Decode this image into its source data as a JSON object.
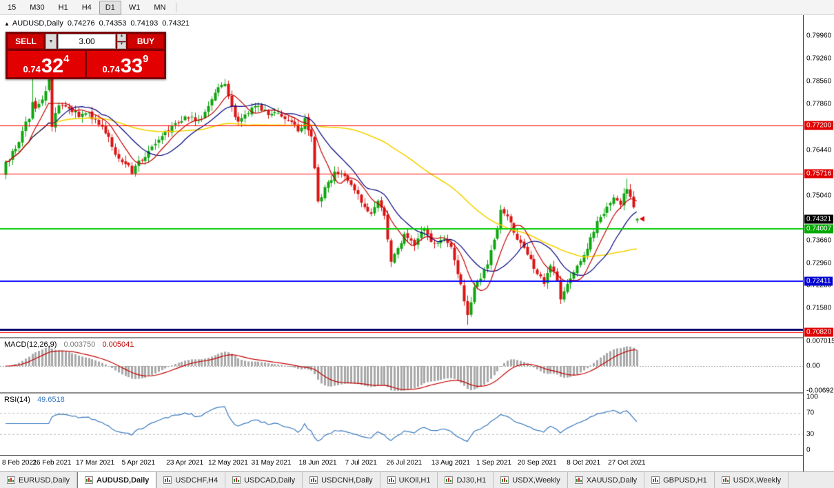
{
  "toolbar": {
    "timeframes": [
      "15",
      "M30",
      "H1",
      "H4",
      "D1",
      "W1",
      "MN"
    ],
    "active": "D1"
  },
  "chart_header": {
    "symbol_label": "AUDUSD,Daily",
    "open": "0.74276",
    "high": "0.74353",
    "low": "0.74193",
    "close": "0.74321"
  },
  "trade_panel": {
    "sell_label": "SELL",
    "buy_label": "BUY",
    "volume": "3.00",
    "sell_price": {
      "prefix": "0.74",
      "big": "32",
      "sup": "4"
    },
    "buy_price": {
      "prefix": "0.74",
      "big": "33",
      "sup": "9"
    }
  },
  "price_axis": {
    "plain_labels": [
      "0.79960",
      "0.79260",
      "0.78560",
      "0.77860",
      "0.76440",
      "0.75040",
      "0.73660",
      "0.72960",
      "0.72280",
      "0.71580"
    ],
    "badges": [
      {
        "value": "0.77200",
        "color": "#e00000"
      },
      {
        "value": "0.75716",
        "color": "#e00000"
      },
      {
        "value": "0.74321",
        "color": "#000000"
      },
      {
        "value": "0.74007",
        "color": "#00a800"
      },
      {
        "value": "0.72411",
        "color": "#0000cf"
      },
      {
        "value": "0.70820",
        "color": "#e00000"
      }
    ]
  },
  "hlines": [
    {
      "price": 0.772,
      "color": "#ff0000",
      "width": 1
    },
    {
      "price": 0.75716,
      "color": "#ff0000",
      "width": 1
    },
    {
      "price": 0.74007,
      "color": "#00cc00",
      "width": 2
    },
    {
      "price": 0.72411,
      "color": "#0000ff",
      "width": 2
    },
    {
      "price": 0.7092,
      "color": "#000066",
      "width": 3
    },
    {
      "price": 0.7082,
      "color": "#ff0000",
      "width": 1
    }
  ],
  "macd_panel": {
    "label": "MACD(12,26,9)",
    "value_main": "0.003750",
    "value_signal": "0.005041",
    "axis_labels": [
      "0.007015",
      "0.00",
      "-0.006923"
    ]
  },
  "rsi_panel": {
    "label": "RSI(14)",
    "value": "49.6518",
    "axis_labels": [
      "100",
      "70",
      "30",
      "0"
    ],
    "levels": [
      70,
      30
    ]
  },
  "tabs": [
    "EURUSD,Daily",
    "AUDUSD,Daily",
    "USDCHF,H4",
    "USDCAD,Daily",
    "USDCNH,Daily",
    "UKOil,H1",
    "DJ30,H1",
    "USDX,Weekly",
    "XAUUSD,Daily",
    "GBPUSD,H1",
    "USDX,Weekly"
  ],
  "active_tab_index": 1,
  "chart_data": {
    "type": "candlestick",
    "symbol": "AUDUSD",
    "timeframe": "Daily",
    "price_range_top": 0.806,
    "price_range_bottom": 0.7068,
    "candle_count": 191,
    "last_candle": {
      "open": 0.74276,
      "high": 0.74353,
      "low": 0.74193,
      "close": 0.74321
    },
    "price_anchors": [
      [
        0,
        0.7608
      ],
      [
        3,
        0.7648
      ],
      [
        6,
        0.7732
      ],
      [
        7,
        0.774
      ],
      [
        8,
        0.7792
      ],
      [
        9,
        0.7772
      ],
      [
        11,
        0.78
      ],
      [
        13,
        0.7862
      ],
      [
        14,
        0.7716
      ],
      [
        16,
        0.7782
      ],
      [
        19,
        0.7772
      ],
      [
        22,
        0.7746
      ],
      [
        25,
        0.776
      ],
      [
        27,
        0.7738
      ],
      [
        30,
        0.7696
      ],
      [
        33,
        0.763
      ],
      [
        36,
        0.7601
      ],
      [
        38,
        0.7572
      ],
      [
        40,
        0.7612
      ],
      [
        43,
        0.7642
      ],
      [
        46,
        0.7676
      ],
      [
        50,
        0.772
      ],
      [
        54,
        0.7748
      ],
      [
        58,
        0.7736
      ],
      [
        61,
        0.778
      ],
      [
        64,
        0.7838
      ],
      [
        66,
        0.7848
      ],
      [
        68,
        0.7778
      ],
      [
        70,
        0.7732
      ],
      [
        73,
        0.7758
      ],
      [
        76,
        0.778
      ],
      [
        79,
        0.7752
      ],
      [
        82,
        0.7758
      ],
      [
        85,
        0.7736
      ],
      [
        88,
        0.7702
      ],
      [
        90,
        0.7744
      ],
      [
        92,
        0.7686
      ],
      [
        94,
        0.7486
      ],
      [
        96,
        0.753
      ],
      [
        99,
        0.7578
      ],
      [
        102,
        0.7564
      ],
      [
        105,
        0.752
      ],
      [
        107,
        0.7482
      ],
      [
        110,
        0.7448
      ],
      [
        112,
        0.7488
      ],
      [
        114,
        0.7442
      ],
      [
        116,
        0.73
      ],
      [
        118,
        0.7342
      ],
      [
        120,
        0.7386
      ],
      [
        123,
        0.735
      ],
      [
        126,
        0.74
      ],
      [
        129,
        0.7358
      ],
      [
        132,
        0.737
      ],
      [
        134,
        0.7346
      ],
      [
        136,
        0.7262
      ],
      [
        138,
        0.7178
      ],
      [
        139,
        0.7136
      ],
      [
        141,
        0.7222
      ],
      [
        143,
        0.7248
      ],
      [
        145,
        0.7292
      ],
      [
        147,
        0.7368
      ],
      [
        149,
        0.746
      ],
      [
        151,
        0.744
      ],
      [
        154,
        0.7368
      ],
      [
        157,
        0.7322
      ],
      [
        160,
        0.7262
      ],
      [
        162,
        0.7232
      ],
      [
        164,
        0.7288
      ],
      [
        166,
        0.7242
      ],
      [
        167,
        0.7184
      ],
      [
        169,
        0.7232
      ],
      [
        171,
        0.7268
      ],
      [
        173,
        0.7302
      ],
      [
        175,
        0.734
      ],
      [
        177,
        0.7392
      ],
      [
        179,
        0.7438
      ],
      [
        181,
        0.747
      ],
      [
        183,
        0.7498
      ],
      [
        185,
        0.7476
      ],
      [
        187,
        0.7524
      ],
      [
        188,
        0.75
      ],
      [
        189,
        0.7468
      ],
      [
        190,
        0.74321
      ]
    ],
    "wick_overrides": [
      {
        "i": 8,
        "high": 0.788
      },
      {
        "i": 139,
        "low": 0.7106
      },
      {
        "i": 167,
        "low": 0.717
      },
      {
        "i": 187,
        "high": 0.7556
      }
    ],
    "date_ticks": [
      {
        "label": "8 Feb 2021",
        "index": 0
      },
      {
        "label": "26 Feb 2021",
        "index": 14
      },
      {
        "label": "17 Mar 2021",
        "index": 27
      },
      {
        "label": "5 Apr 2021",
        "index": 40
      },
      {
        "label": "23 Apr 2021",
        "index": 54
      },
      {
        "label": "12 May 2021",
        "index": 67
      },
      {
        "label": "31 May 2021",
        "index": 80
      },
      {
        "label": "18 Jun 2021",
        "index": 94
      },
      {
        "label": "7 Jul 2021",
        "index": 107
      },
      {
        "label": "26 Jul 2021",
        "index": 120
      },
      {
        "label": "13 Aug 2021",
        "index": 134
      },
      {
        "label": "1 Sep 2021",
        "index": 147
      },
      {
        "label": "20 Sep 2021",
        "index": 160
      },
      {
        "label": "8 Oct 2021",
        "index": 174
      },
      {
        "label": "27 Oct 2021",
        "index": 187
      }
    ],
    "moving_averages": [
      {
        "period": 8,
        "color": "#c40000",
        "width": 1.2
      },
      {
        "period": 16,
        "color": "#000080",
        "width": 1.2
      },
      {
        "period": 60,
        "color": "#f5d400",
        "width": 1.6
      }
    ],
    "macd": {
      "fast": 12,
      "slow": 26,
      "signal": 9,
      "hist_color": "#a8a8a8",
      "signal_color": "#c40000"
    },
    "rsi": {
      "period": 14,
      "color": "#3a7abf"
    },
    "candle_colors": {
      "up": "#0fa50f",
      "down": "#dc1414"
    }
  }
}
